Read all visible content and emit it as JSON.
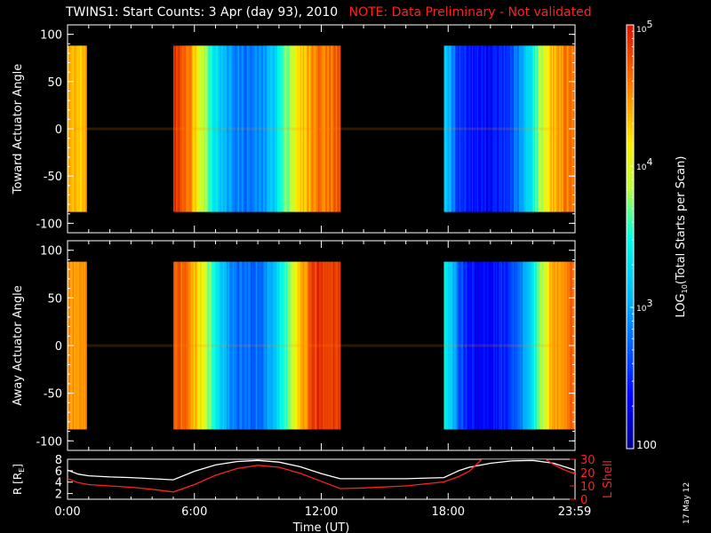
{
  "title": {
    "main": "TWINS1: Start Counts:  3 Apr (day  93), 2010",
    "note": "NOTE: Data Preliminary - Not validated"
  },
  "datestamp": "17 May 12",
  "chart_data": [
    {
      "type": "heatmap",
      "panel": "top",
      "ylabel": "Toward Actuator Angle",
      "ylim": [
        -110,
        110
      ],
      "yticks": [
        100,
        50,
        0,
        -50,
        -100
      ],
      "data_y_range": [
        -88,
        88
      ],
      "x_range_hours": [
        0,
        24
      ],
      "data_blocks_hours": [
        [
          0.0,
          0.9
        ],
        [
          5.0,
          12.9
        ],
        [
          17.8,
          24.0
        ]
      ],
      "profile_log10": [
        [
          0.0,
          4.4
        ],
        [
          0.5,
          4.3
        ],
        [
          0.9,
          4.4
        ],
        [
          5.0,
          4.9
        ],
        [
          5.6,
          4.7
        ],
        [
          6.2,
          4.1
        ],
        [
          6.8,
          3.5
        ],
        [
          7.4,
          3.05
        ],
        [
          8.0,
          2.85
        ],
        [
          8.6,
          2.8
        ],
        [
          9.2,
          2.9
        ],
        [
          9.8,
          3.3
        ],
        [
          10.4,
          3.8
        ],
        [
          11.0,
          4.25
        ],
        [
          11.8,
          4.6
        ],
        [
          12.9,
          4.7
        ],
        [
          17.8,
          3.3
        ],
        [
          18.4,
          2.6
        ],
        [
          19.0,
          2.45
        ],
        [
          19.6,
          2.4
        ],
        [
          20.2,
          2.4
        ],
        [
          20.8,
          2.55
        ],
        [
          21.4,
          2.9
        ],
        [
          22.0,
          3.5
        ],
        [
          22.8,
          4.3
        ],
        [
          23.5,
          4.55
        ],
        [
          24.0,
          4.6
        ]
      ]
    },
    {
      "type": "heatmap",
      "panel": "middle",
      "ylabel": "Away Actuator Angle",
      "ylim": [
        -110,
        110
      ],
      "yticks": [
        100,
        50,
        0,
        -50,
        -100
      ],
      "data_y_range": [
        -88,
        88
      ],
      "x_range_hours": [
        0,
        24
      ],
      "data_blocks_hours": [
        [
          0.0,
          0.9
        ],
        [
          5.0,
          12.9
        ],
        [
          17.8,
          24.0
        ]
      ],
      "profile_log10": [
        [
          0.0,
          4.5
        ],
        [
          0.5,
          4.4
        ],
        [
          0.9,
          4.5
        ],
        [
          5.0,
          4.7
        ],
        [
          5.6,
          4.6
        ],
        [
          6.2,
          4.2
        ],
        [
          6.8,
          3.6
        ],
        [
          7.4,
          3.05
        ],
        [
          8.0,
          2.8
        ],
        [
          8.6,
          2.75
        ],
        [
          9.2,
          2.8
        ],
        [
          9.8,
          3.2
        ],
        [
          10.4,
          3.7
        ],
        [
          11.0,
          4.3
        ],
        [
          11.6,
          4.8
        ],
        [
          12.2,
          4.9
        ],
        [
          12.9,
          4.85
        ],
        [
          17.8,
          3.5
        ],
        [
          18.4,
          2.8
        ],
        [
          19.0,
          2.4
        ],
        [
          19.6,
          2.35
        ],
        [
          20.2,
          2.4
        ],
        [
          20.8,
          2.5
        ],
        [
          21.4,
          2.8
        ],
        [
          22.0,
          3.4
        ],
        [
          22.8,
          4.3
        ],
        [
          23.5,
          4.6
        ],
        [
          24.0,
          4.6
        ]
      ]
    },
    {
      "type": "line",
      "panel": "bottom",
      "ylabel_left": "R [R",
      "ylabel_left_sub": "E",
      "ylabel_left_end": "]",
      "ylabel_right": "L Shell",
      "xlabel": "Time (UT)",
      "x_ticks": [
        "0:00",
        "6:00",
        "12:00",
        "18:00",
        "23:59"
      ],
      "x_tick_hours": [
        0,
        6,
        12,
        18,
        23.98
      ],
      "ylim_left": [
        1,
        8
      ],
      "yticks_left": [
        2,
        4,
        6,
        8
      ],
      "ylim_right": [
        0,
        30
      ],
      "yticks_right": [
        0,
        10,
        20,
        30
      ],
      "series": [
        {
          "name": "R",
          "color": "#ffffff",
          "x": [
            0,
            0.5,
            1,
            2,
            3,
            4,
            5,
            6,
            7,
            8,
            9,
            10,
            11,
            12,
            12.9,
            14,
            16,
            17.8,
            18.5,
            19,
            20,
            21,
            22,
            23,
            24
          ],
          "y": [
            6.1,
            5.4,
            5.1,
            4.9,
            4.8,
            4.6,
            4.4,
            5.9,
            7.0,
            7.6,
            7.8,
            7.5,
            6.7,
            5.5,
            4.6,
            4.6,
            4.6,
            4.8,
            6.0,
            6.6,
            7.3,
            7.7,
            7.8,
            7.3,
            6.1
          ]
        },
        {
          "name": "L Shell",
          "color": "#ff2020",
          "x": [
            0,
            0.5,
            1,
            2,
            3,
            4,
            5,
            6,
            7,
            8,
            9,
            10,
            11,
            12,
            12.9,
            14,
            16,
            17.8,
            18.5,
            19,
            19.6,
            22.6,
            23,
            23.5,
            24
          ],
          "y": [
            15.5,
            12.5,
            11,
            10,
            9,
            7.5,
            5.5,
            11,
            18,
            23,
            25.5,
            24,
            19.5,
            13.5,
            8,
            8.5,
            10,
            13,
            17,
            21,
            30,
            30,
            26,
            22,
            19
          ]
        }
      ]
    },
    {
      "type": "heatmap",
      "panel": "colorbar",
      "label": "LOG",
      "label_sub": "10",
      "label_rest": "(Total Starts per Scan)",
      "log10_range": [
        2,
        5
      ],
      "ticks": [
        {
          "base": "10",
          "exp": "5",
          "log10": 5
        },
        {
          "base": "10",
          "exp": "4",
          "log10": 4
        },
        {
          "base": "10",
          "exp": "3",
          "log10": 3
        },
        {
          "base": "100",
          "exp": "",
          "log10": 2
        }
      ]
    }
  ],
  "colors": {
    "background": "#000000",
    "axes": "#ffffff",
    "note": "#ff2020",
    "lshell": "#ff2020"
  }
}
